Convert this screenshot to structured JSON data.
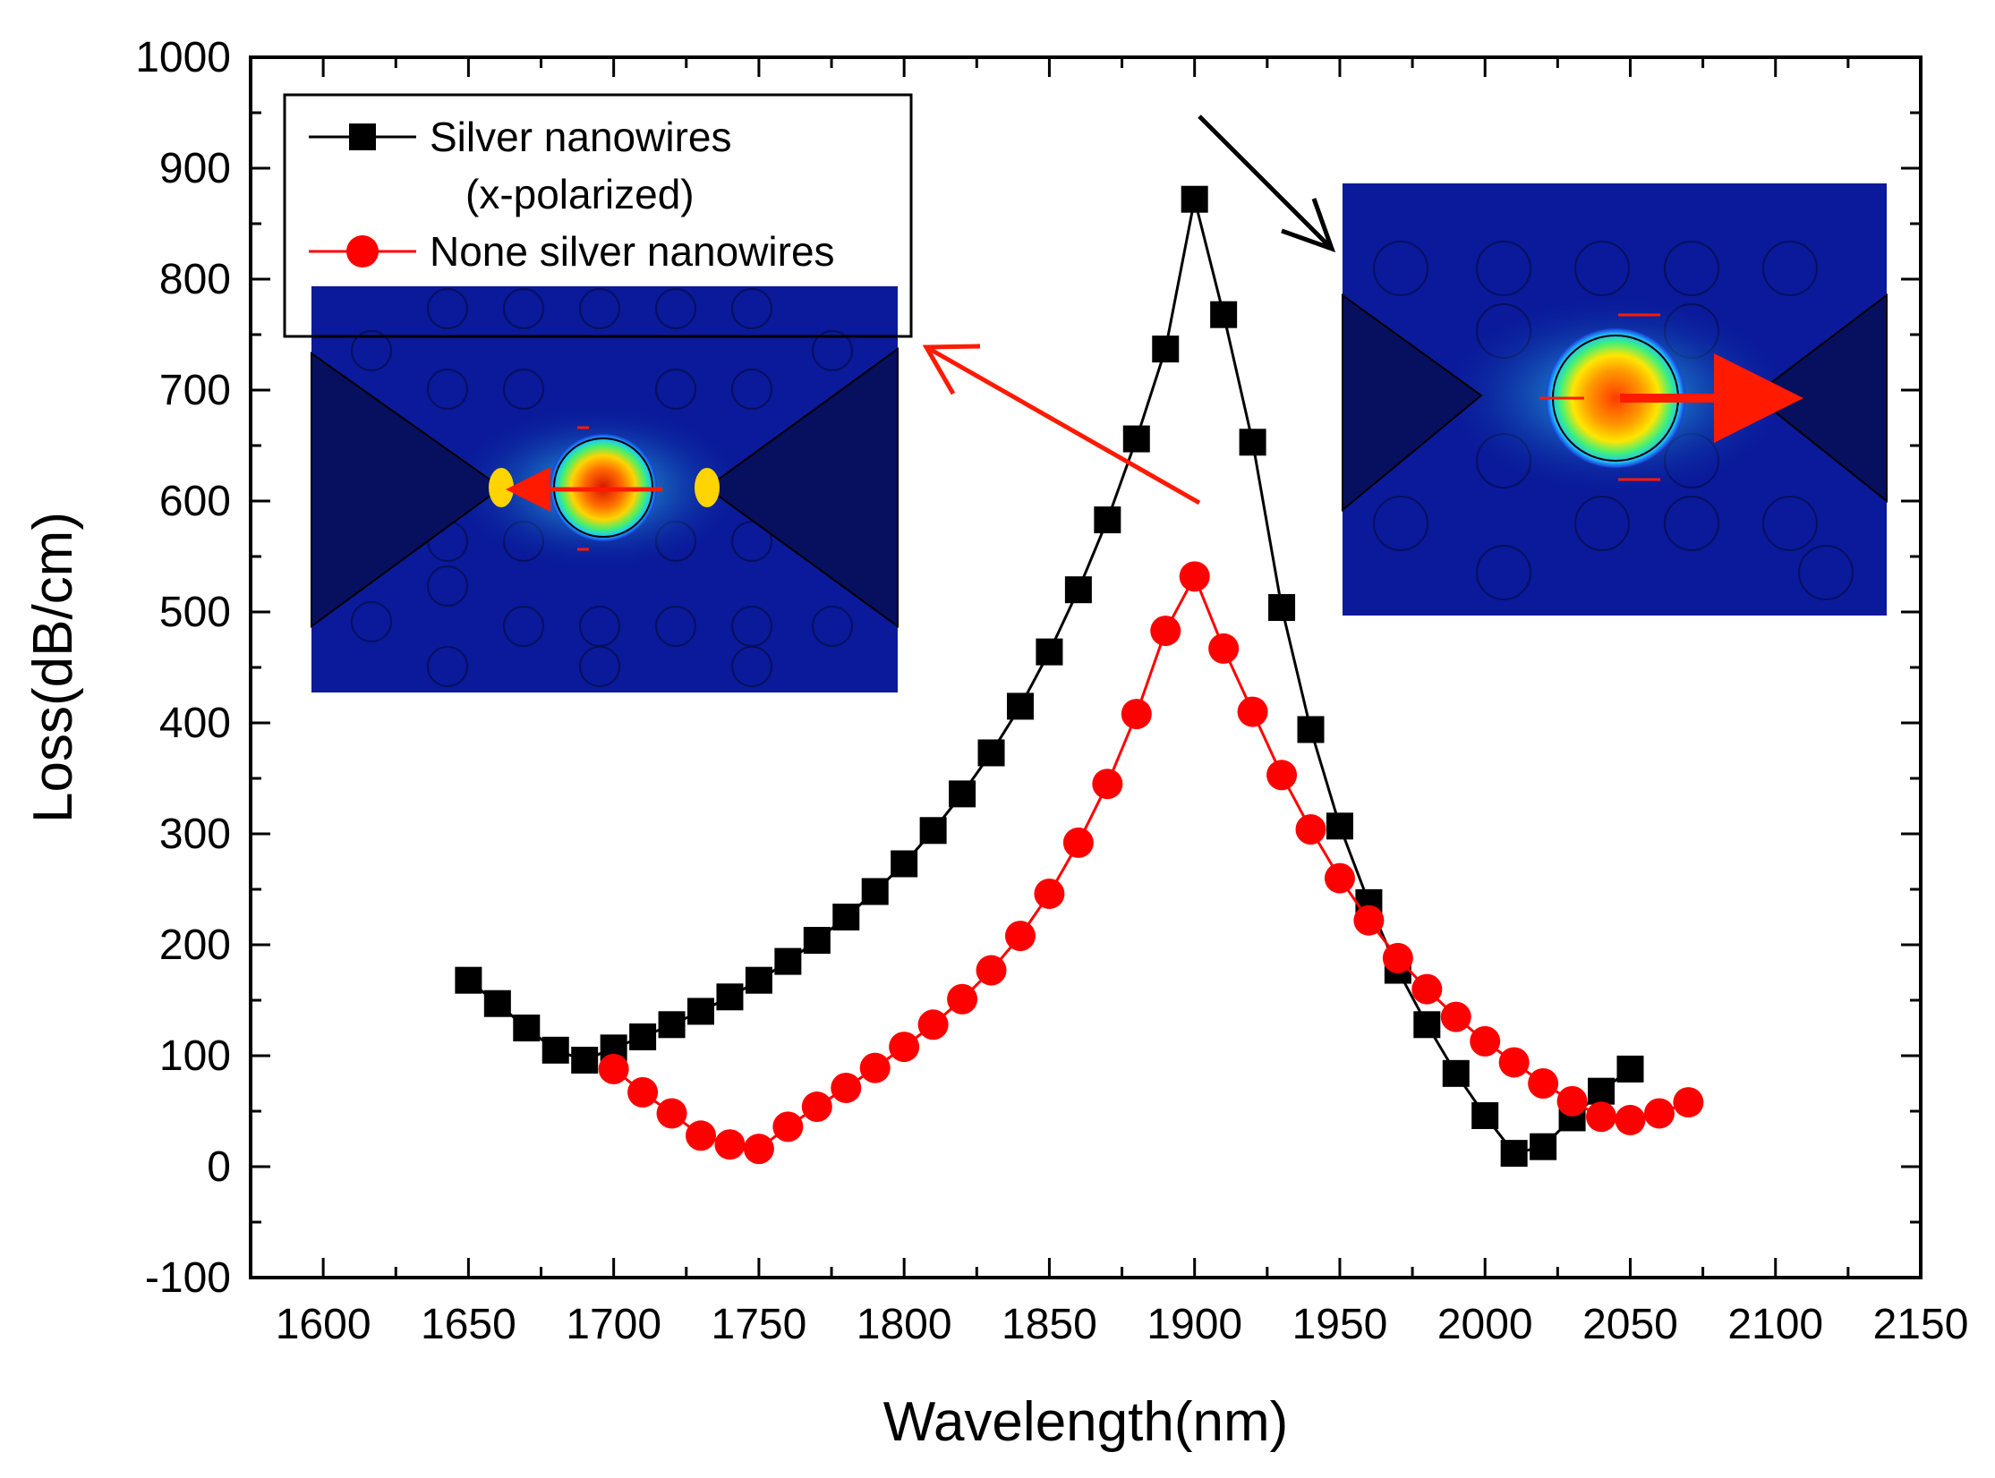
{
  "chart_data": {
    "type": "line",
    "title": "",
    "xlabel": "Wavelength(nm)",
    "ylabel": "Loss(dB/cm)",
    "xlim": [
      1575,
      2150
    ],
    "ylim": [
      -100,
      1000
    ],
    "x_ticks": [
      1600,
      1650,
      1700,
      1750,
      1800,
      1850,
      1900,
      1950,
      2000,
      2050,
      2100,
      2150
    ],
    "y_ticks": [
      -100,
      0,
      100,
      200,
      300,
      400,
      500,
      600,
      700,
      800,
      900,
      1000
    ],
    "grid": false,
    "legend_position": "top-left",
    "series": [
      {
        "name": "Silver nanowires",
        "name_line2": "(x-polarized)",
        "color": "#000000",
        "marker": "square",
        "x": [
          1650,
          1660,
          1670,
          1680,
          1690,
          1700,
          1710,
          1720,
          1730,
          1740,
          1750,
          1760,
          1770,
          1780,
          1790,
          1800,
          1810,
          1820,
          1830,
          1840,
          1850,
          1860,
          1870,
          1880,
          1890,
          1900,
          1910,
          1920,
          1930,
          1940,
          1950,
          1960,
          1970,
          1980,
          1990,
          2000,
          2010,
          2020,
          2030,
          2040,
          2050
        ],
        "y": [
          168,
          147,
          125,
          105,
          96,
          107,
          117,
          128,
          140,
          153,
          168,
          185,
          204,
          225,
          248,
          273,
          303,
          336,
          373,
          415,
          464,
          520,
          583,
          656,
          737,
          872,
          768,
          653,
          504,
          394,
          307,
          238,
          177,
          128,
          84,
          46,
          12,
          18,
          44,
          68,
          88
        ]
      },
      {
        "name": "None silver nanowires",
        "color": "#ff0000",
        "marker": "circle",
        "x": [
          1700,
          1710,
          1720,
          1730,
          1740,
          1750,
          1760,
          1770,
          1780,
          1790,
          1800,
          1810,
          1820,
          1830,
          1840,
          1850,
          1860,
          1870,
          1880,
          1890,
          1900,
          1910,
          1920,
          1930,
          1940,
          1950,
          1960,
          1970,
          1980,
          1990,
          2000,
          2010,
          2020,
          2030,
          2040,
          2050,
          2060,
          2070
        ],
        "y": [
          88,
          67,
          48,
          28,
          20,
          16,
          36,
          54,
          71,
          89,
          108,
          128,
          151,
          177,
          208,
          246,
          292,
          345,
          408,
          483,
          532,
          467,
          410,
          353,
          304,
          260,
          222,
          188,
          160,
          135,
          113,
          94,
          75,
          59,
          45,
          42,
          48,
          58
        ]
      }
    ],
    "annotations": [
      {
        "name": "left-inset",
        "description_ref": "field map: none silver nanowires"
      },
      {
        "name": "right-inset",
        "description_ref": "field map: silver nanowires x-polarized"
      }
    ]
  },
  "colors": {
    "inset_background": "#0a1a9a",
    "inset_dark": "#06105e",
    "arrow_red": "#ff1a00"
  }
}
